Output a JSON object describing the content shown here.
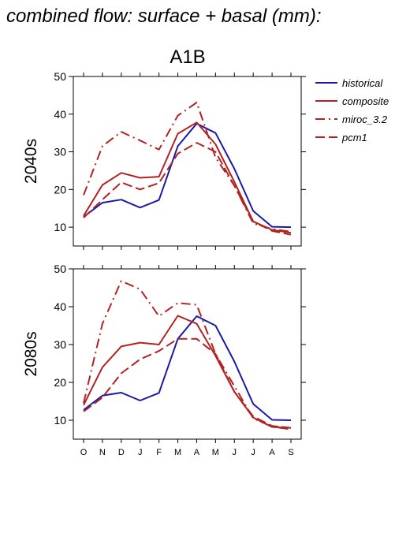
{
  "page_title": "combined flow: surface + basal (mm):",
  "scenario": "A1B",
  "colors": {
    "historical": "#1a1aa8",
    "model": "#b22222"
  },
  "legend": [
    {
      "name": "historical",
      "dash": "solid",
      "color": "#1a1aa8"
    },
    {
      "name": "composite",
      "dash": "solid",
      "color": "#b22222"
    },
    {
      "name": "miroc_3.2",
      "dash": "dashdot",
      "color": "#b22222"
    },
    {
      "name": "pcm1",
      "dash": "dash",
      "color": "#b22222"
    }
  ],
  "chart_data": [
    {
      "type": "line",
      "panel_label": "2040s",
      "categories": [
        "O",
        "N",
        "D",
        "J",
        "F",
        "M",
        "A",
        "M",
        "J",
        "J",
        "A",
        "S"
      ],
      "ylim": [
        5,
        50
      ],
      "yticks": [
        10,
        20,
        30,
        40,
        50
      ],
      "grid": false,
      "legend_position": "right",
      "series": [
        {
          "name": "historical",
          "values": [
            12.7,
            16.5,
            17.3,
            15.2,
            17.2,
            31.5,
            37.5,
            35.0,
            25.5,
            14.3,
            10.1,
            10.0
          ]
        },
        {
          "name": "composite",
          "values": [
            13.0,
            21.2,
            24.4,
            23.1,
            23.4,
            34.8,
            37.8,
            32.0,
            22.0,
            11.5,
            9.3,
            8.5
          ]
        },
        {
          "name": "miroc_3.2",
          "values": [
            18.5,
            31.5,
            35.3,
            33.0,
            30.6,
            39.6,
            43.1,
            28.5,
            21.0,
            11.0,
            9.5,
            8.8
          ]
        },
        {
          "name": "pcm1",
          "values": [
            12.5,
            17.3,
            21.9,
            20.0,
            21.7,
            29.5,
            32.4,
            30.0,
            21.0,
            11.5,
            9.0,
            8.0
          ]
        }
      ]
    },
    {
      "type": "line",
      "panel_label": "2080s",
      "categories": [
        "O",
        "N",
        "D",
        "J",
        "F",
        "M",
        "A",
        "M",
        "J",
        "J",
        "A",
        "S"
      ],
      "ylim": [
        5,
        50
      ],
      "yticks": [
        10,
        20,
        30,
        40,
        50
      ],
      "grid": false,
      "legend_position": "none",
      "series": [
        {
          "name": "historical",
          "values": [
            12.7,
            16.5,
            17.3,
            15.2,
            17.2,
            31.5,
            37.5,
            35.0,
            25.5,
            14.3,
            10.1,
            10.0
          ]
        },
        {
          "name": "composite",
          "values": [
            14.0,
            24.0,
            29.5,
            30.5,
            30.0,
            37.6,
            35.5,
            27.0,
            17.5,
            10.7,
            8.2,
            8.0
          ]
        },
        {
          "name": "miroc_3.2",
          "values": [
            14.5,
            35.5,
            46.8,
            44.6,
            37.5,
            41.0,
            40.5,
            27.5,
            19.0,
            10.5,
            8.3,
            7.6
          ]
        },
        {
          "name": "pcm1",
          "values": [
            12.3,
            16.0,
            22.4,
            26.1,
            28.3,
            31.5,
            31.5,
            27.5,
            17.5,
            11.0,
            8.5,
            8.0
          ]
        }
      ]
    }
  ]
}
